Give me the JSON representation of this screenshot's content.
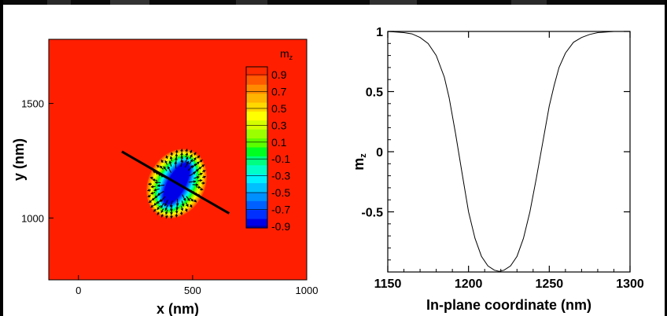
{
  "chart_data": [
    {
      "type": "heatmap",
      "title": "",
      "xlabel": "x (nm)",
      "ylabel": "y (nm)",
      "xlim": [
        -130,
        1000
      ],
      "ylim": [
        730,
        1780
      ],
      "x_ticks": [
        0,
        500,
        1000
      ],
      "y_ticks": [
        1000,
        1500
      ],
      "x_tick_labels": [
        "0",
        "500",
        "1000"
      ],
      "y_tick_labels": [
        "1000",
        "1500"
      ],
      "background_value": 1.0,
      "skyrmion": {
        "center": [
          430,
          1150
        ],
        "long_axis_angle_deg": 62,
        "core_semi_axes_nm": [
          40,
          100
        ],
        "profile_line": {
          "from": [
            190,
            1290
          ],
          "to": [
            660,
            1020
          ]
        }
      },
      "colorbar": {
        "label": "m",
        "label_subscript": "z",
        "levels": [
          "0.9",
          "0.7",
          "0.5",
          "0.3",
          "0.1",
          "-0.1",
          "-0.3",
          "-0.5",
          "-0.7",
          "-0.9"
        ],
        "colors": [
          "#ff2a00",
          "#ff5a00",
          "#ff8a00",
          "#ffb400",
          "#ffd800",
          "#ffff00",
          "#d4ff00",
          "#9cff00",
          "#5cff00",
          "#00ff20",
          "#00ff80",
          "#00ffc8",
          "#00f0ff",
          "#00c0ff",
          "#0090ff",
          "#0060ff",
          "#0030ff",
          "#0000e8"
        ]
      }
    },
    {
      "type": "line",
      "title": "",
      "xlabel": "In-plane coordinate (nm)",
      "ylabel": "m",
      "ylabel_subscript": "z",
      "xlim": [
        1150,
        1300
      ],
      "ylim": [
        -1,
        1
      ],
      "x_ticks": [
        1150,
        1200,
        1250,
        1300
      ],
      "y_ticks": [
        -0.5,
        0,
        0.5,
        1
      ],
      "x_tick_labels": [
        "1150",
        "1200",
        "1250",
        "1300"
      ],
      "y_tick_labels": [
        "-0.5",
        "0",
        "0.5",
        "1"
      ],
      "series": [
        {
          "x": [
            1150,
            1160,
            1165,
            1170,
            1175,
            1180,
            1185,
            1188,
            1192,
            1196,
            1200,
            1204,
            1208,
            1212,
            1216,
            1219,
            1222,
            1226,
            1230,
            1234,
            1238,
            1242,
            1246,
            1250,
            1253,
            1256,
            1260,
            1265,
            1270,
            1275,
            1280,
            1290,
            1300
          ],
          "y": [
            1.0,
            0.99,
            0.98,
            0.95,
            0.9,
            0.8,
            0.62,
            0.45,
            0.15,
            -0.18,
            -0.5,
            -0.72,
            -0.87,
            -0.95,
            -0.985,
            -0.995,
            -0.985,
            -0.95,
            -0.87,
            -0.72,
            -0.5,
            -0.22,
            0.08,
            0.38,
            0.55,
            0.7,
            0.82,
            0.91,
            0.95,
            0.975,
            0.99,
            1.0,
            1.0
          ]
        }
      ]
    }
  ]
}
